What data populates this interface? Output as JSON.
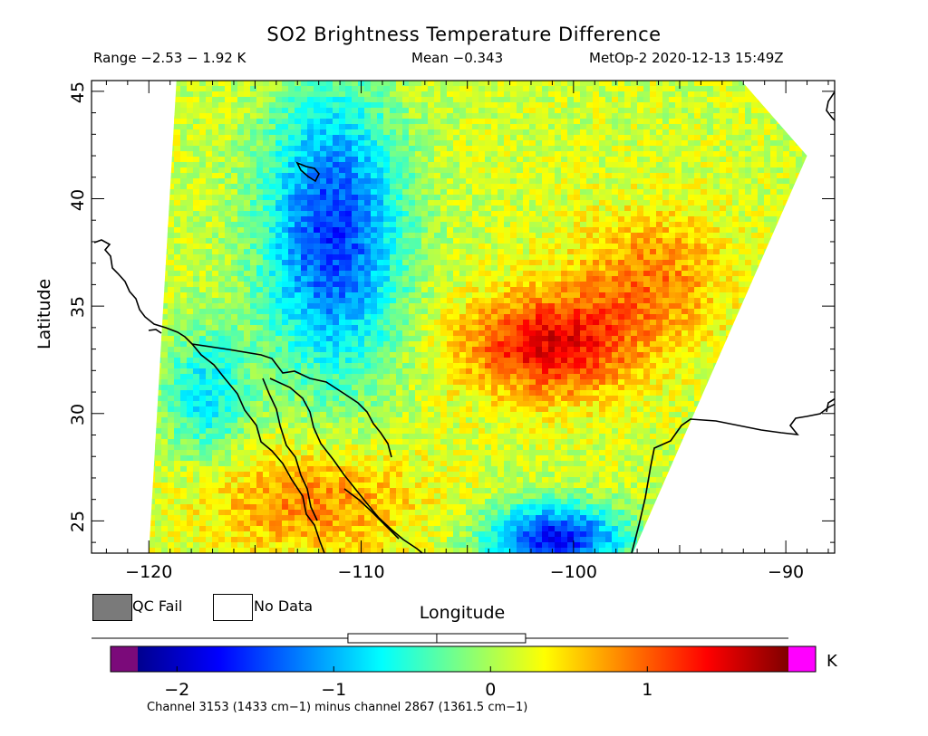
{
  "header": {
    "title": "SO2 Brightness Temperature Difference",
    "range_text": "Range −2.53 − 1.92 K",
    "mean_text": "Mean −0.343",
    "satellite_text": "MetOp-2 2020-12-13 15:49Z"
  },
  "map": {
    "lon_range": [
      -122.7,
      -87.7
    ],
    "lat_range": [
      23.5,
      45.5
    ],
    "x_axis_title": "Longitude",
    "y_axis_title": "Latitude",
    "x_ticks": [
      {
        "value": -120,
        "label": "−120"
      },
      {
        "value": -110,
        "label": "−110"
      },
      {
        "value": -100,
        "label": "−100"
      },
      {
        "value": -90,
        "label": "−90"
      }
    ],
    "y_ticks": [
      {
        "value": 25,
        "label": "25"
      },
      {
        "value": 30,
        "label": "30"
      },
      {
        "value": 35,
        "label": "35"
      },
      {
        "value": 40,
        "label": "40"
      },
      {
        "value": 45,
        "label": "45"
      }
    ],
    "swath_polygon_lonlat": [
      [
        -118.7,
        45.5
      ],
      [
        -92.1,
        45.5
      ],
      [
        -89.0,
        42.0
      ],
      [
        -97.2,
        23.5
      ],
      [
        -120.0,
        23.5
      ]
    ],
    "features": [
      {
        "name": "btd-low-northwest",
        "lon": -111.5,
        "lat": 38.5,
        "value": -1.7
      },
      {
        "name": "btd-high-center",
        "lon": -101.3,
        "lat": 33.3,
        "value": 1.3
      },
      {
        "name": "btd-low-southeast",
        "lon": -101.0,
        "lat": 24.3,
        "value": -1.9
      }
    ]
  },
  "legend": {
    "qc_fail_label": "QC Fail",
    "no_data_label": "No Data",
    "qc_color": "#7a7a7a",
    "no_data_color": "#ffffff"
  },
  "colorbar": {
    "min": -2.25,
    "max": 1.9,
    "unit_label": "K",
    "mean_value": -0.343,
    "range_values": [
      -2.53,
      1.92
    ],
    "ticks": [
      {
        "value": -2,
        "label": "−2"
      },
      {
        "value": -1,
        "label": "−1"
      },
      {
        "value": 0,
        "label": "0"
      },
      {
        "value": 1,
        "label": "1"
      }
    ],
    "below_min_color": "#7b0a7a",
    "above_max_color": "#ff00ff",
    "colormap": [
      "#00008f",
      "#0000ff",
      "#007fff",
      "#00ffff",
      "#7fff7f",
      "#ffff00",
      "#ff7f00",
      "#ff0000",
      "#7f0000"
    ]
  },
  "footer": {
    "channel_text": "Channel 3153 (1433 cm−1) minus channel 2867 (1361.5 cm−1)"
  }
}
